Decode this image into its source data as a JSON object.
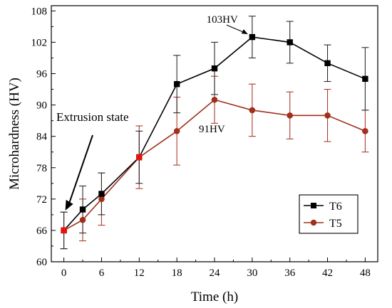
{
  "chart_data": {
    "type": "line",
    "title": "",
    "xlabel": "Time (h)",
    "ylabel": "Microhardness (HV)",
    "xlim": [
      -2,
      50
    ],
    "ylim": [
      60,
      109
    ],
    "x_ticks": [
      0,
      6,
      12,
      18,
      24,
      30,
      36,
      42,
      48
    ],
    "y_ticks": [
      60,
      66,
      72,
      78,
      84,
      90,
      96,
      102,
      108
    ],
    "grid": false,
    "legend_position": "bottom-right",
    "series": [
      {
        "name": "T6",
        "color": "#000000",
        "error_bar_color": "#2b2b2b",
        "marker": "square",
        "x": [
          0,
          3,
          6,
          12,
          18,
          24,
          30,
          36,
          42,
          48
        ],
        "y": [
          66,
          70,
          73,
          80,
          94,
          97,
          103,
          102,
          98,
          95
        ],
        "error": [
          3.5,
          4.5,
          4,
          5,
          5.5,
          5,
          4,
          4,
          3.5,
          6
        ]
      },
      {
        "name": "T5",
        "color": "#a0301c",
        "marker_color": "#e8120c",
        "error_bar_color": "#b03a2e",
        "marker": "circle",
        "x": [
          0,
          3,
          6,
          12,
          18,
          24,
          30,
          36,
          42,
          48
        ],
        "y": [
          66,
          68,
          72,
          80,
          85,
          91,
          89,
          88,
          88,
          85
        ],
        "error": [
          3.5,
          4,
          5,
          6,
          6.5,
          4.5,
          5,
          4.5,
          5,
          4
        ]
      }
    ],
    "annotations": [
      {
        "text": "103HV",
        "x": 30,
        "y": 103
      },
      {
        "text": "91HV",
        "x": 24,
        "y": 91
      },
      {
        "text": "Extrusion state",
        "x": 0,
        "y": 66
      }
    ]
  }
}
